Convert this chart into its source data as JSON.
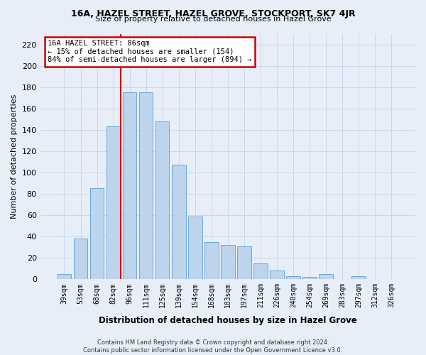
{
  "title": "16A, HAZEL STREET, HAZEL GROVE, STOCKPORT, SK7 4JR",
  "subtitle": "Size of property relative to detached houses in Hazel Grove",
  "xlabel": "Distribution of detached houses by size in Hazel Grove",
  "ylabel": "Number of detached properties",
  "footer_line1": "Contains HM Land Registry data © Crown copyright and database right 2024.",
  "footer_line2": "Contains public sector information licensed under the Open Government Licence v3.0.",
  "categories": [
    "39sqm",
    "53sqm",
    "68sqm",
    "82sqm",
    "96sqm",
    "111sqm",
    "125sqm",
    "139sqm",
    "154sqm",
    "168sqm",
    "183sqm",
    "197sqm",
    "211sqm",
    "226sqm",
    "240sqm",
    "254sqm",
    "269sqm",
    "283sqm",
    "297sqm",
    "312sqm",
    "326sqm"
  ],
  "values": [
    5,
    38,
    85,
    143,
    175,
    175,
    148,
    107,
    59,
    35,
    32,
    31,
    15,
    8,
    3,
    2,
    5,
    0,
    3,
    0,
    0
  ],
  "bar_color": "#bdd4ed",
  "bar_edge_color": "#5a9fd4",
  "annotation_text_line1": "16A HAZEL STREET: 86sqm",
  "annotation_text_line2": "← 15% of detached houses are smaller (154)",
  "annotation_text_line3": "84% of semi-detached houses are larger (894) →",
  "annotation_box_color": "#ffffff",
  "annotation_box_edge_color": "#cc0000",
  "vline_color": "#cc0000",
  "grid_color": "#c8d8ec",
  "background_color": "#e8eef8",
  "ylim": [
    0,
    230
  ],
  "yticks": [
    0,
    20,
    40,
    60,
    80,
    100,
    120,
    140,
    160,
    180,
    200,
    220
  ],
  "vline_position": 3.45
}
